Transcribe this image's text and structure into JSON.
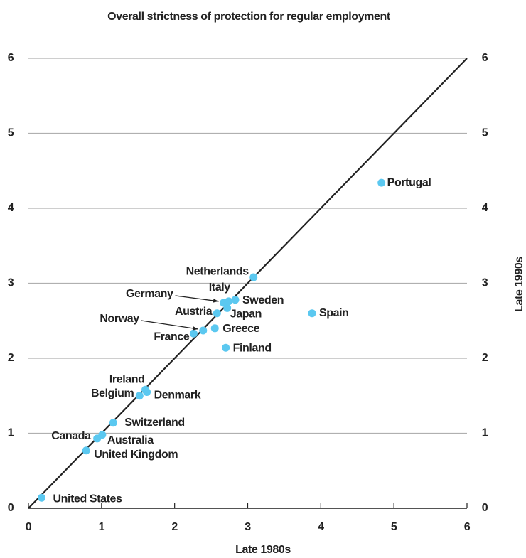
{
  "chart_data": {
    "type": "scatter",
    "title": "Overall strictness of protection for regular employment",
    "xlabel": "Late 1980s",
    "ylabel": "Late 1990s",
    "labels": [
      "United States",
      "United Kingdom",
      "Canada",
      "Australia",
      "Switzerland",
      "Ireland",
      "Belgium",
      "Denmark",
      "France",
      "Norway",
      "Greece",
      "Finland",
      "Austria",
      "Japan",
      "Germany",
      "Italy",
      "Sweden",
      "Netherlands",
      "Spain",
      "Portugal"
    ],
    "x": [
      0.18,
      0.79,
      0.94,
      1.01,
      1.16,
      1.6,
      1.52,
      1.62,
      2.26,
      2.39,
      2.55,
      2.7,
      2.58,
      2.72,
      2.67,
      2.74,
      2.83,
      3.08,
      3.88,
      4.83
    ],
    "y": [
      0.14,
      0.77,
      0.93,
      0.98,
      1.14,
      1.58,
      1.5,
      1.55,
      2.33,
      2.37,
      2.4,
      2.14,
      2.6,
      2.67,
      2.74,
      2.76,
      2.78,
      3.08,
      2.6,
      4.34
    ],
    "color": "#5bc8f0",
    "xlim": [
      0,
      6
    ],
    "ylim": [
      0,
      6
    ],
    "xticks": [
      0,
      1,
      2,
      3,
      4,
      5,
      6
    ],
    "yticks": [
      0,
      1,
      2,
      3,
      4,
      5,
      6
    ],
    "grid": true
  }
}
